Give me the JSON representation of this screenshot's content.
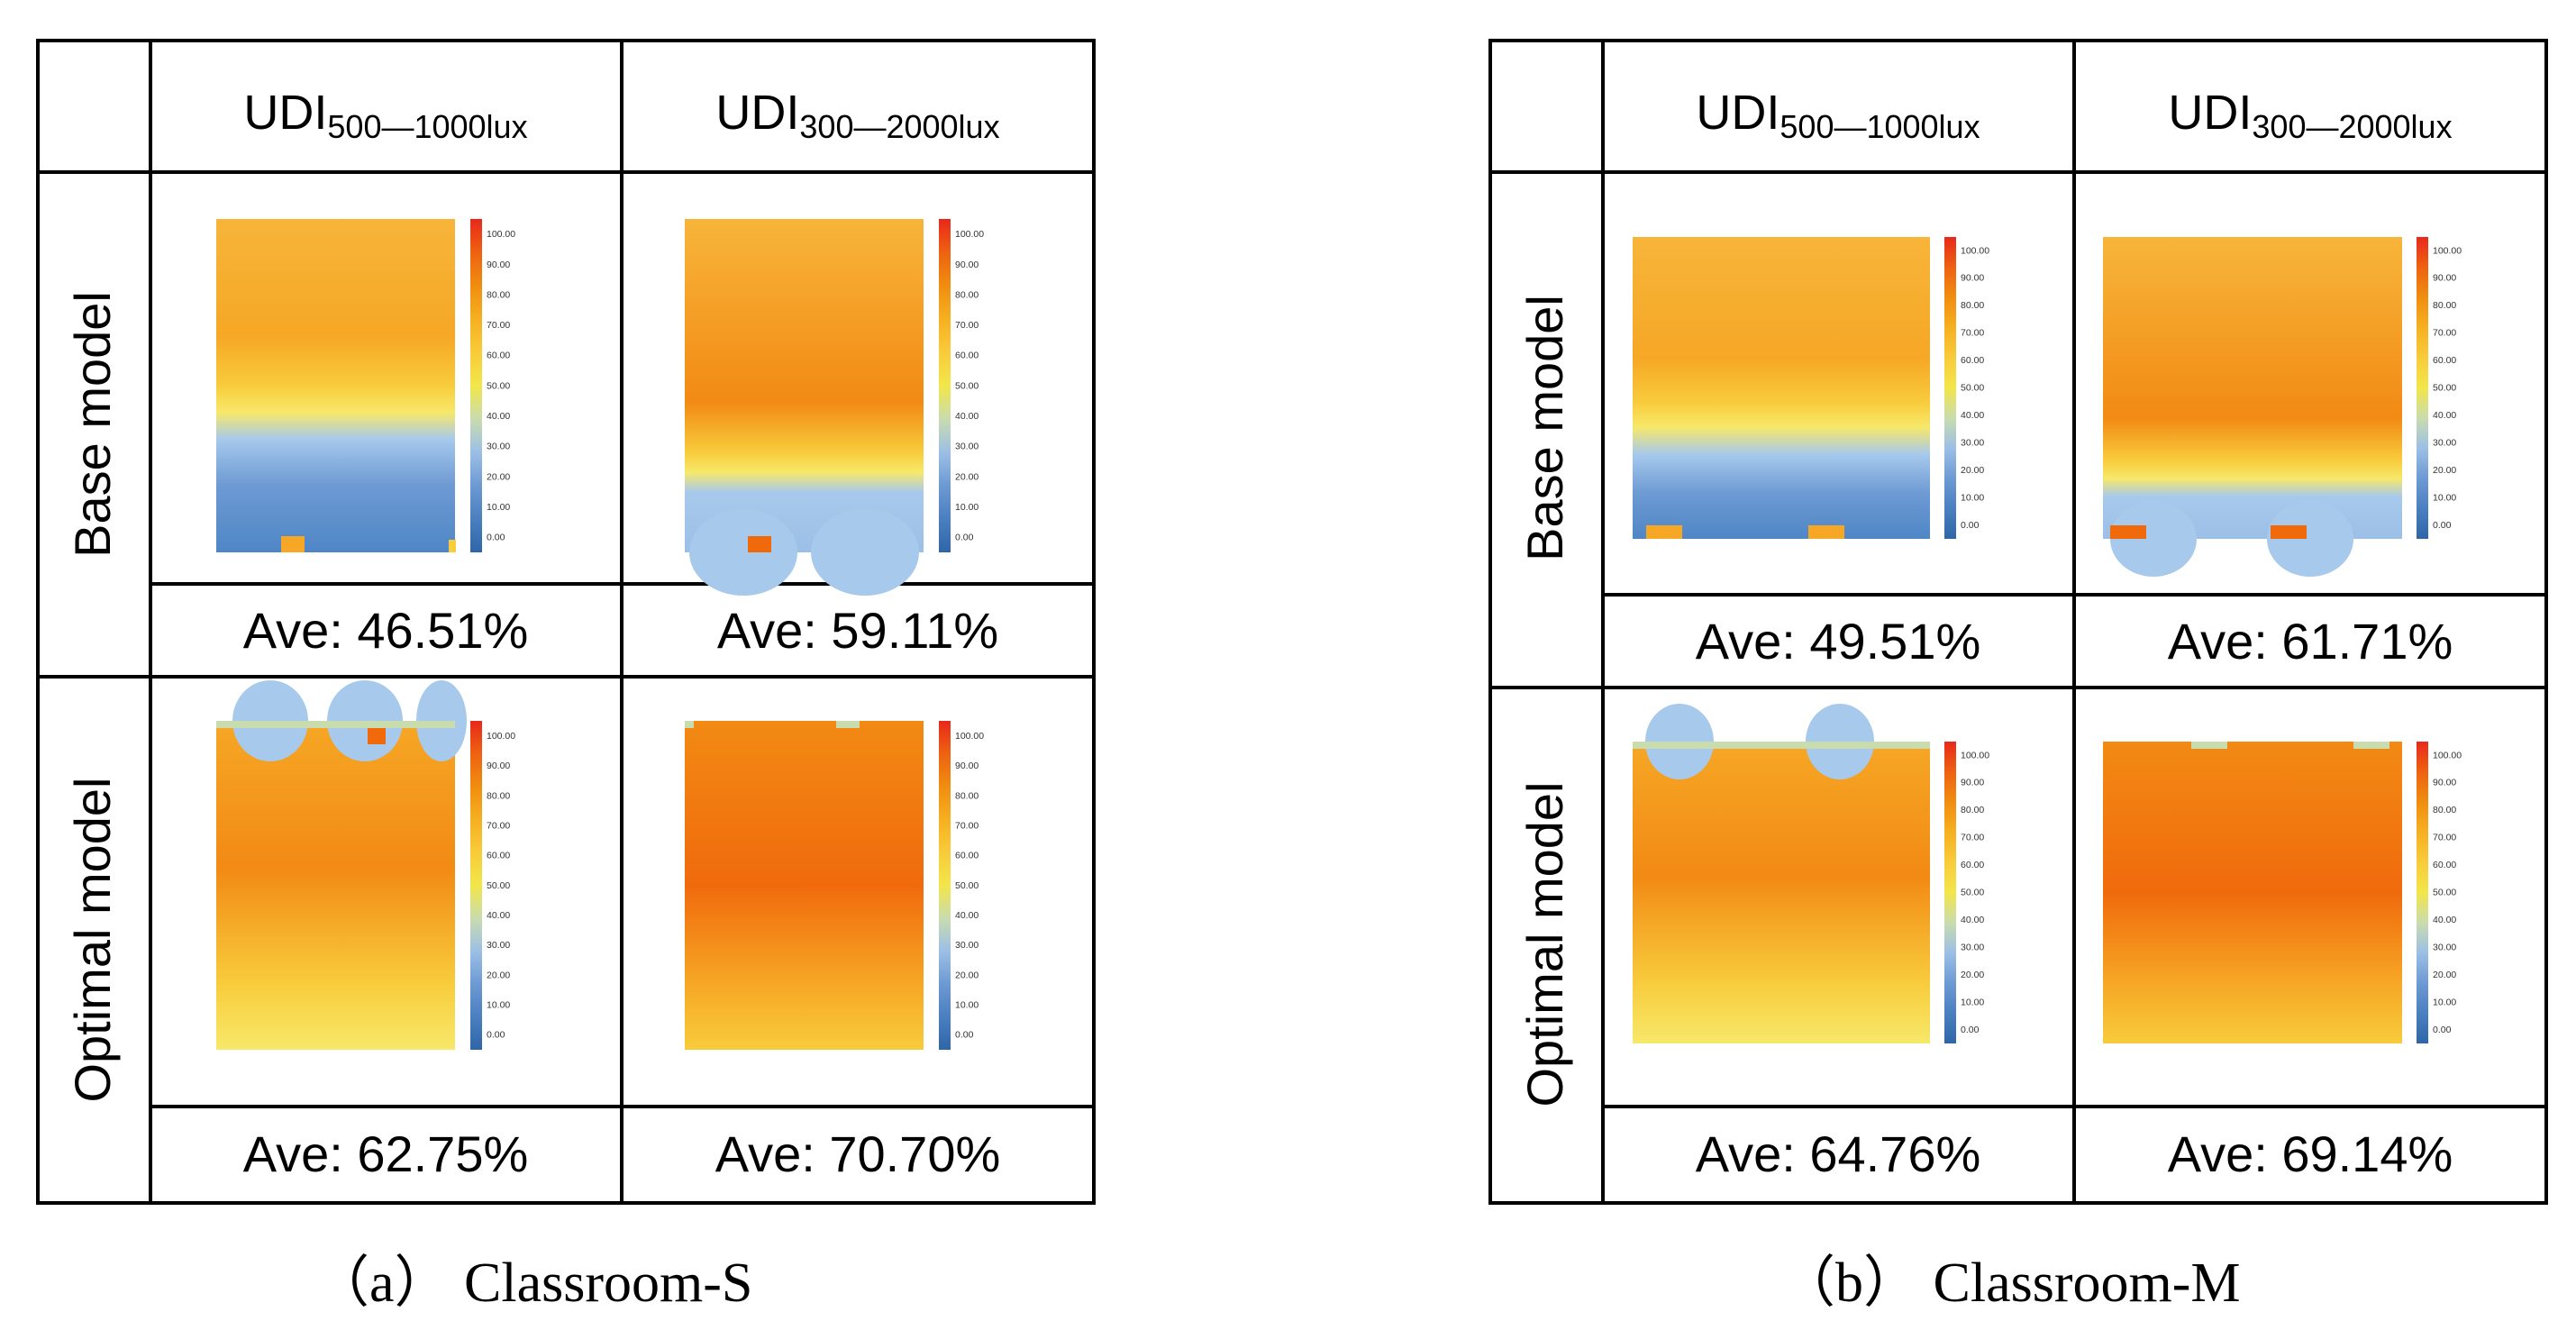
{
  "panels": [
    {
      "caption": "（a）  Classroom-S",
      "columns": [
        {
          "base": "UDI",
          "sub": "500—1000lux"
        },
        {
          "base": "UDI",
          "sub": "300—2000lux"
        }
      ],
      "rows": [
        {
          "label": "Base model",
          "averages": [
            "Ave: 46.51%",
            "Ave: 59.11%"
          ]
        },
        {
          "label": "Optimal model",
          "averages": [
            "Ave: 62.75%",
            "Ave: 70.70%"
          ]
        }
      ]
    },
    {
      "caption": "（b）  Classroom-M",
      "columns": [
        {
          "base": "UDI",
          "sub": "500—1000lux"
        },
        {
          "base": "UDI",
          "sub": "300—2000lux"
        }
      ],
      "rows": [
        {
          "label": "Base model",
          "averages": [
            "Ave: 49.51%",
            "Ave: 61.71%"
          ]
        },
        {
          "label": "Optimal model",
          "averages": [
            "Ave: 64.76%",
            "Ave: 69.14%"
          ]
        }
      ]
    }
  ],
  "legend": {
    "ticks": [
      "100.00",
      "90.00",
      "80.00",
      "70.00",
      "60.00",
      "50.00",
      "40.00",
      "30.00",
      "20.00",
      "10.00",
      "0.00"
    ],
    "colors": [
      "#2f66a8",
      "#4a7fc0",
      "#6d9ad3",
      "#9cbfe6",
      "#c9dcae",
      "#f2e64a",
      "#f8cb3a",
      "#f6b020",
      "#f08d10",
      "#ee6210",
      "#e8281c"
    ]
  },
  "heatmap_palette": {
    "deep_blue": "#4f86c6",
    "light_blue": "#a7c9ec",
    "light_yellow": "#f7e86a",
    "yellow": "#f8cc3c",
    "orange": "#f6a725",
    "dark_orange": "#f28a14",
    "hot_orange": "#f06a0c"
  }
}
